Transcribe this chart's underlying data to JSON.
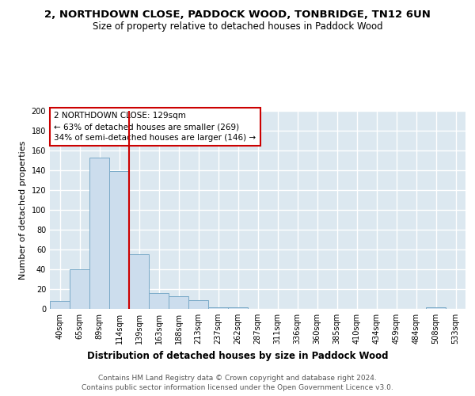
{
  "title": "2, NORTHDOWN CLOSE, PADDOCK WOOD, TONBRIDGE, TN12 6UN",
  "subtitle": "Size of property relative to detached houses in Paddock Wood",
  "xlabel": "Distribution of detached houses by size in Paddock Wood",
  "ylabel": "Number of detached properties",
  "bin_labels": [
    "40sqm",
    "65sqm",
    "89sqm",
    "114sqm",
    "139sqm",
    "163sqm",
    "188sqm",
    "213sqm",
    "237sqm",
    "262sqm",
    "287sqm",
    "311sqm",
    "336sqm",
    "360sqm",
    "385sqm",
    "410sqm",
    "434sqm",
    "459sqm",
    "484sqm",
    "508sqm",
    "533sqm"
  ],
  "bar_values": [
    8,
    40,
    153,
    139,
    55,
    16,
    13,
    9,
    2,
    2,
    0,
    0,
    0,
    0,
    0,
    0,
    0,
    0,
    0,
    2,
    0
  ],
  "bar_color": "#ccdded",
  "bar_edge_color": "#7aaac8",
  "background_color": "#dce8f0",
  "grid_color": "#ffffff",
  "vline_color": "#cc0000",
  "annotation_text": "2 NORTHDOWN CLOSE: 129sqm\n← 63% of detached houses are smaller (269)\n34% of semi-detached houses are larger (146) →",
  "annotation_box_color": "#ffffff",
  "annotation_box_edge": "#cc0000",
  "ylim": [
    0,
    200
  ],
  "yticks": [
    0,
    20,
    40,
    60,
    80,
    100,
    120,
    140,
    160,
    180,
    200
  ],
  "footnote": "Contains HM Land Registry data © Crown copyright and database right 2024.\nContains public sector information licensed under the Open Government Licence v3.0.",
  "title_fontsize": 9.5,
  "subtitle_fontsize": 8.5,
  "xlabel_fontsize": 8.5,
  "ylabel_fontsize": 8,
  "tick_fontsize": 7,
  "annotation_fontsize": 7.5,
  "footnote_fontsize": 6.5
}
